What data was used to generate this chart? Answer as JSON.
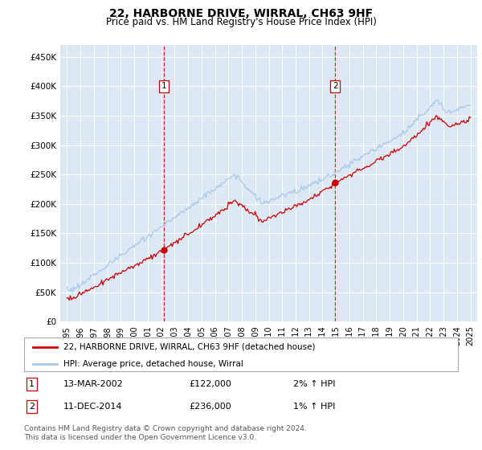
{
  "title": "22, HARBORNE DRIVE, WIRRAL, CH63 9HF",
  "subtitle": "Price paid vs. HM Land Registry's House Price Index (HPI)",
  "plot_bg_color": "#dce9f5",
  "yticks": [
    0,
    50000,
    100000,
    150000,
    200000,
    250000,
    300000,
    350000,
    400000,
    450000
  ],
  "ytick_labels": [
    "£0",
    "£50K",
    "£100K",
    "£150K",
    "£200K",
    "£250K",
    "£300K",
    "£350K",
    "£400K",
    "£450K"
  ],
  "ylim": [
    0,
    470000
  ],
  "xlim_min": 1994.5,
  "xlim_max": 2025.5,
  "transactions": [
    {
      "label": "1",
      "date": "13-MAR-2002",
      "price": 122000,
      "x": 2002.2,
      "pct": "2%",
      "direction": "↑"
    },
    {
      "label": "2",
      "date": "11-DEC-2014",
      "price": 236000,
      "x": 2014.95,
      "pct": "1%",
      "direction": "↑"
    }
  ],
  "legend_line1": "22, HARBORNE DRIVE, WIRRAL, CH63 9HF (detached house)",
  "legend_line2": "HPI: Average price, detached house, Wirral",
  "footer": "Contains HM Land Registry data © Crown copyright and database right 2024.\nThis data is licensed under the Open Government Licence v3.0.",
  "hpi_color": "#a8c8e8",
  "sale_color": "#cc0000",
  "vline_color": "#cc0000",
  "marker_color": "#cc0000",
  "title_fontsize": 10,
  "subtitle_fontsize": 8.5,
  "tick_fontsize": 7.5,
  "legend_fontsize": 7.5,
  "table_fontsize": 8,
  "footer_fontsize": 6.5
}
